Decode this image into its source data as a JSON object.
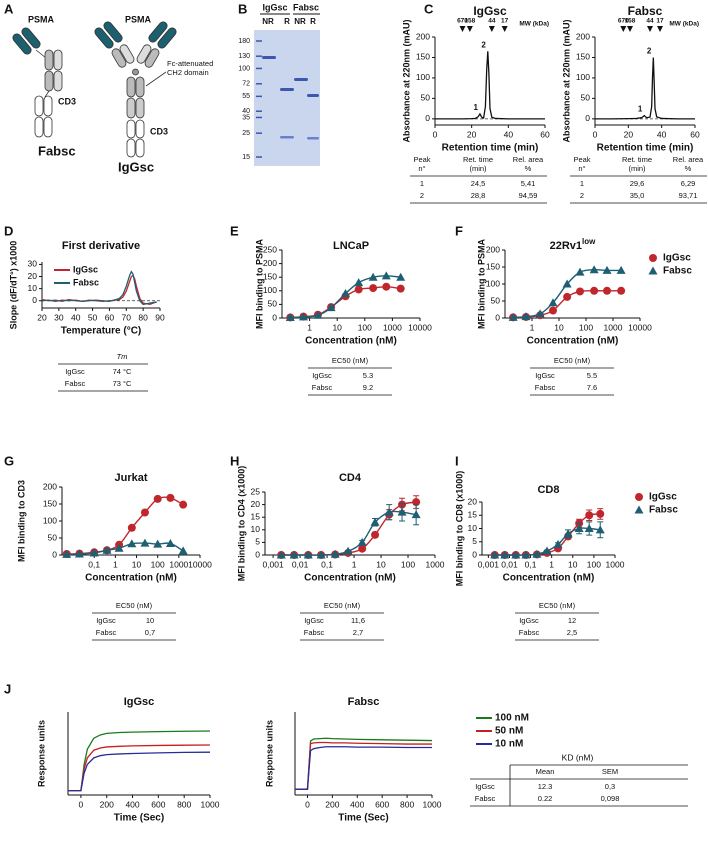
{
  "panel_labels": [
    "A",
    "B",
    "C",
    "D",
    "E",
    "F",
    "G",
    "H",
    "I",
    "J"
  ],
  "diagram": {
    "psma": [
      "PSMA",
      "PSMA"
    ],
    "cd3": [
      "CD3",
      "CD3"
    ],
    "fc_note": [
      "Fc-attenuated",
      "CH2 domain"
    ],
    "names": [
      "Fabsc",
      "IgGsc"
    ]
  },
  "gel": {
    "groups": [
      "IgGsc",
      "Fabsc"
    ],
    "lanes": [
      "NR",
      "R",
      "NR",
      "R"
    ],
    "mw_markers": [
      180,
      130,
      100,
      72,
      55,
      40,
      35,
      25,
      15
    ]
  },
  "chart_data": [
    {
      "type": "line",
      "title": "IgGsc",
      "xlabel": "Retention time (min)",
      "ylabel": "Absorbance at 220nm (mAU)",
      "xlim": [
        0,
        60
      ],
      "ylim": [
        -15,
        200
      ],
      "xticks": [
        0,
        20,
        40,
        60
      ],
      "yticks": [
        0,
        50,
        100,
        150,
        200
      ],
      "zero_line": true,
      "mw_unit": "MW (kDa)",
      "mw_markers": [
        {
          "value": 15,
          "label": "670"
        },
        {
          "value": 19,
          "label": "158"
        },
        {
          "value": 31,
          "label": "44"
        },
        {
          "value": 38,
          "label": "17"
        }
      ],
      "peak_labels": [
        {
          "x": 24.5,
          "y": 12,
          "label": "1"
        },
        {
          "x": 28.8,
          "y": 165,
          "label": "2"
        }
      ],
      "x": [
        0,
        5,
        10,
        15,
        20,
        22,
        23.5,
        24.5,
        25.5,
        26.5,
        27.5,
        28.2,
        28.8,
        29.4,
        30,
        31,
        33,
        40,
        50,
        60
      ],
      "series": [
        {
          "color": "#111111",
          "values": [
            0,
            0,
            0,
            0,
            0.5,
            1,
            5,
            12,
            4,
            2,
            30,
            120,
            165,
            110,
            25,
            4,
            1,
            0,
            0,
            0
          ]
        }
      ]
    },
    {
      "type": "line",
      "title": "Fabsc",
      "xlabel": "Retention time (min)",
      "ylabel": "Absorbance at 220nm (mAU)",
      "xlim": [
        0,
        60
      ],
      "ylim": [
        -15,
        200
      ],
      "xticks": [
        0,
        20,
        40,
        60
      ],
      "yticks": [
        0,
        50,
        100,
        150,
        200
      ],
      "zero_line": true,
      "mw_unit": "MW (kDa)",
      "mw_markers": [
        {
          "value": 17,
          "label": "670"
        },
        {
          "value": 21,
          "label": "158"
        },
        {
          "value": 33,
          "label": "44"
        },
        {
          "value": 39,
          "label": "17"
        }
      ],
      "peak_labels": [
        {
          "x": 29.6,
          "y": 8,
          "label": "1"
        },
        {
          "x": 35,
          "y": 150,
          "label": "2"
        }
      ],
      "x": [
        0,
        10,
        20,
        25,
        28,
        29,
        29.6,
        30.3,
        31,
        33,
        34,
        34.5,
        35,
        35.5,
        36,
        37,
        40,
        50,
        60
      ],
      "series": [
        {
          "color": "#111111",
          "values": [
            0,
            0,
            0.5,
            1,
            3,
            6,
            8,
            5,
            3,
            4,
            30,
            100,
            150,
            90,
            25,
            5,
            1,
            0,
            0
          ]
        }
      ]
    },
    {
      "type": "line",
      "title": "First derivative",
      "xlabel": "Temperature (°C)",
      "ylabel": "Slope (dF/dT°) x1000",
      "xlim": [
        20,
        90
      ],
      "ylim": [
        -6,
        32
      ],
      "xticks": [
        20,
        30,
        40,
        50,
        60,
        70,
        80,
        90
      ],
      "yticks": [
        0,
        10,
        20,
        30
      ],
      "zero_line": true,
      "legend": "upper left",
      "x": [
        20,
        24,
        28,
        32,
        36,
        40,
        44,
        48,
        52,
        56,
        60,
        64,
        66,
        68,
        70,
        72,
        73,
        74,
        75,
        76,
        78,
        80,
        84,
        88
      ],
      "series": [
        {
          "name": "IgGsc",
          "color": "#c0272d",
          "values": [
            1,
            0,
            0.5,
            -0.5,
            1,
            0,
            -0.5,
            0.5,
            0,
            -0.5,
            0,
            0.5,
            1,
            3,
            8,
            16,
            20,
            21,
            18,
            12,
            2,
            -2,
            -3,
            -1
          ]
        },
        {
          "name": "Fabsc",
          "color": "#1f5f73",
          "values": [
            0,
            0.5,
            -0.5,
            0.5,
            0,
            0.5,
            -0.5,
            0,
            0.5,
            0,
            -0.5,
            1,
            2,
            5,
            12,
            21,
            24,
            22,
            15,
            8,
            0,
            -3,
            -2,
            -1
          ]
        }
      ]
    },
    {
      "type": "scatter",
      "curve": true,
      "xscale": "log",
      "title": "LNCaP",
      "xlabel": "Concentration (nM)",
      "ylabel": "MFI binding to PSMA",
      "xlim": [
        0.1,
        10000
      ],
      "ylim": [
        0,
        250
      ],
      "xticks": [
        1,
        10,
        100,
        1000,
        10000
      ],
      "yticks": [
        0,
        50,
        100,
        150,
        200,
        250
      ],
      "x": [
        0.2,
        0.6,
        2,
        6,
        20,
        60,
        200,
        600,
        2000
      ],
      "series": [
        {
          "color": "#c0272d",
          "marker": "circle",
          "values": [
            2,
            5,
            12,
            40,
            80,
            105,
            110,
            115,
            108
          ]
        },
        {
          "color": "#1f5f73",
          "marker": "triangle",
          "values": [
            2,
            4,
            10,
            38,
            90,
            130,
            150,
            155,
            150
          ]
        }
      ]
    },
    {
      "type": "scatter",
      "curve": true,
      "xscale": "log",
      "title": "22Rv1",
      "title_sup": "low",
      "xlabel": "Concentration (nM)",
      "ylabel": "MFI binding to PSMA",
      "xlim": [
        0.1,
        10000
      ],
      "ylim": [
        0,
        200
      ],
      "xticks": [
        1,
        10,
        100,
        1000,
        10000
      ],
      "yticks": [
        0,
        50,
        100,
        150,
        200
      ],
      "legend": "right",
      "x": [
        0.2,
        0.6,
        2,
        6,
        20,
        60,
        200,
        600,
        2000
      ],
      "series": [
        {
          "name": "IgGsc",
          "color": "#c0272d",
          "marker": "circle",
          "values": [
            2,
            3,
            8,
            22,
            62,
            78,
            80,
            80,
            80
          ]
        },
        {
          "name": "Fabsc",
          "color": "#1f5f73",
          "marker": "triangle",
          "values": [
            2,
            4,
            12,
            45,
            100,
            135,
            142,
            140,
            140
          ]
        }
      ]
    },
    {
      "type": "scatter",
      "curve": true,
      "xscale": "log",
      "title": "Jurkat",
      "xlabel": "Concentration (nM)",
      "ylabel": "MFI binding to CD3",
      "xlim": [
        0.003,
        10000
      ],
      "ylim": [
        0,
        200
      ],
      "xticks": [
        {
          "value": 0.1,
          "label": "0,1"
        },
        1,
        10,
        100,
        1000,
        10000
      ],
      "yticks": [
        0,
        50,
        100,
        150,
        200
      ],
      "x": [
        0.005,
        0.02,
        0.1,
        0.4,
        1.5,
        6,
        25,
        100,
        400,
        1600
      ],
      "series": [
        {
          "color": "#c0272d",
          "marker": "circle",
          "values": [
            3,
            4,
            8,
            14,
            30,
            80,
            125,
            165,
            168,
            148
          ]
        },
        {
          "color": "#1f5f73",
          "marker": "triangle",
          "values": [
            2,
            3,
            6,
            14,
            20,
            33,
            35,
            32,
            34,
            12
          ]
        }
      ]
    },
    {
      "type": "scatter",
      "curve": true,
      "xscale": "log",
      "title": "CD4",
      "xlabel": "Concentration (nM)",
      "ylabel": "MFI binding to CD4 (x1000)",
      "xlim": [
        0.0005,
        1000
      ],
      "ylim": [
        0,
        25
      ],
      "xticks": [
        {
          "value": 0.001,
          "label": "0,001"
        },
        {
          "value": 0.01,
          "label": "0,01"
        },
        {
          "value": 0.1,
          "label": "0,1"
        },
        1,
        10,
        100,
        1000
      ],
      "yticks": [
        0,
        5,
        10,
        15,
        20,
        25
      ],
      "x": [
        0.002,
        0.006,
        0.02,
        0.06,
        0.2,
        0.6,
        2,
        6,
        20,
        60,
        200
      ],
      "series": [
        {
          "color": "#c0272d",
          "marker": "circle",
          "values": [
            0,
            0,
            0,
            0,
            0.2,
            0.8,
            2.5,
            8,
            16,
            20,
            21
          ],
          "errors": [
            0,
            0,
            0,
            0,
            0,
            0.2,
            0.5,
            1,
            2,
            2.5,
            2.5
          ]
        },
        {
          "color": "#1f5f73",
          "marker": "triangle",
          "values": [
            0,
            0,
            0,
            0,
            0.3,
            1.5,
            5,
            13,
            17,
            17,
            16
          ],
          "errors": [
            0,
            0,
            0,
            0,
            0,
            0.3,
            0.8,
            1.5,
            3,
            3.5,
            4
          ]
        }
      ]
    },
    {
      "type": "scatter",
      "curve": true,
      "xscale": "log",
      "title": "CD8",
      "xlabel": "Concentration (nM)",
      "ylabel": "MFI binding to CD8 (x1000)",
      "xlim": [
        0.0005,
        1000
      ],
      "ylim": [
        0,
        20
      ],
      "xticks": [
        {
          "value": 0.001,
          "label": "0,001"
        },
        {
          "value": 0.01,
          "label": "0,01"
        },
        {
          "value": 0.1,
          "label": "0,1"
        },
        1,
        10,
        100,
        1000
      ],
      "yticks": [
        0,
        5,
        10,
        15,
        20
      ],
      "legend": "right",
      "x": [
        0.002,
        0.006,
        0.02,
        0.06,
        0.2,
        0.6,
        2,
        6,
        20,
        60,
        200
      ],
      "series": [
        {
          "name": "IgGsc",
          "color": "#c0272d",
          "marker": "circle",
          "values": [
            0,
            0,
            0,
            0,
            0.2,
            0.8,
            2.5,
            7,
            12,
            15,
            15.5
          ],
          "errors": [
            0,
            0,
            0,
            0,
            0,
            0.2,
            0.5,
            1,
            1.5,
            2,
            2
          ]
        },
        {
          "name": "Fabsc",
          "color": "#1f5f73",
          "marker": "triangle",
          "values": [
            0,
            0,
            0,
            0,
            0.3,
            1.5,
            4,
            8,
            10,
            10,
            9.5
          ],
          "errors": [
            0,
            0,
            0,
            0,
            0,
            0.3,
            0.6,
            1.5,
            2,
            2.5,
            3
          ]
        }
      ]
    },
    {
      "type": "line",
      "title": "IgGsc",
      "xlabel": "Time (Sec)",
      "ylabel": "Response units",
      "xlim": [
        -100,
        1000
      ],
      "ylim": [
        -20,
        360
      ],
      "xticks": [
        0,
        200,
        400,
        600,
        800,
        1000
      ],
      "legend": "right",
      "x": [
        -100,
        -50,
        0,
        25,
        50,
        100,
        150,
        200,
        300,
        400,
        600,
        800,
        1000
      ],
      "series": [
        {
          "name": "100 nM",
          "color": "#1a7a1a",
          "values": [
            0,
            0,
            0,
            120,
            190,
            240,
            255,
            262,
            266,
            268,
            270,
            272,
            273
          ]
        },
        {
          "name": "50 nM",
          "color": "#c81e1e",
          "values": [
            0,
            0,
            0,
            100,
            150,
            185,
            195,
            200,
            203,
            205,
            207,
            208,
            209
          ]
        },
        {
          "name": "10 nM",
          "color": "#2a2a9a",
          "values": [
            0,
            0,
            0,
            80,
            120,
            150,
            160,
            165,
            168,
            170,
            173,
            175,
            176
          ]
        }
      ]
    },
    {
      "type": "line",
      "title": "Fabsc",
      "xlabel": "Time (Sec)",
      "ylabel": "Response units",
      "xlim": [
        -100,
        1000
      ],
      "ylim": [
        -15,
        200
      ],
      "xticks": [
        0,
        200,
        400,
        600,
        800,
        1000
      ],
      "x": [
        -100,
        -50,
        0,
        25,
        50,
        100,
        150,
        200,
        300,
        400,
        600,
        800,
        1000
      ],
      "series": [
        {
          "color": "#1a7a1a",
          "values": [
            0,
            0,
            0,
            125,
            130,
            131,
            132,
            131,
            130,
            129,
            128,
            127,
            126
          ]
        },
        {
          "color": "#c81e1e",
          "values": [
            0,
            0,
            0,
            118,
            120,
            121,
            121,
            120,
            120,
            119,
            118,
            117,
            117
          ]
        },
        {
          "color": "#2a2a9a",
          "values": [
            0,
            0,
            0,
            100,
            105,
            108,
            110,
            110,
            110,
            109,
            109,
            108,
            108
          ]
        }
      ]
    }
  ],
  "tables": [
    {
      "columns": [
        [
          "Peak",
          "n°"
        ],
        [
          "Ret. time",
          "(min)"
        ],
        [
          "Rel. area",
          "%"
        ]
      ],
      "rows": [
        [
          "1",
          "24,5",
          "5,41"
        ],
        [
          "2",
          "28,8",
          "94,59"
        ]
      ]
    },
    {
      "columns": [
        [
          "Peak",
          "n°"
        ],
        [
          "Ret. time",
          "(min)"
        ],
        [
          "Rel. area",
          "%"
        ]
      ],
      "rows": [
        [
          "1",
          "29,6",
          "6,29"
        ],
        [
          "2",
          "35,0",
          "93,71"
        ]
      ]
    },
    {
      "columns": [
        "Tm"
      ],
      "rows": [
        [
          "IgGsc",
          "74 °C"
        ],
        [
          "Fabsc",
          "73 °C"
        ]
      ]
    },
    {
      "columns": [
        "EC50 (nM)"
      ],
      "rows": [
        [
          "IgGsc",
          "5.3"
        ],
        [
          "Fabsc",
          "9.2"
        ]
      ]
    },
    {
      "columns": [
        "EC50 (nM)"
      ],
      "rows": [
        [
          "IgGsc",
          "5.5"
        ],
        [
          "Fabsc",
          "7.6"
        ]
      ]
    },
    {
      "columns": [
        "EC50 (nM)"
      ],
      "rows": [
        [
          "IgGsc",
          "10"
        ],
        [
          "Fabsc",
          "0,7"
        ]
      ]
    },
    {
      "columns": [
        "EC50 (nM)"
      ],
      "rows": [
        [
          "IgGsc",
          "11,6"
        ],
        [
          "Fabsc",
          "2,7"
        ]
      ]
    },
    {
      "columns": [
        "EC50 (nM)"
      ],
      "rows": [
        [
          "IgGsc",
          "12"
        ],
        [
          "Fabsc",
          "2,5"
        ]
      ]
    },
    {
      "title": "KD (nM)",
      "columns": [
        "Mean",
        "SEM"
      ],
      "rows": [
        [
          "IgGsc",
          "12.3",
          "0,3"
        ],
        [
          "Fabsc",
          "0.22",
          "0,098"
        ]
      ]
    }
  ]
}
